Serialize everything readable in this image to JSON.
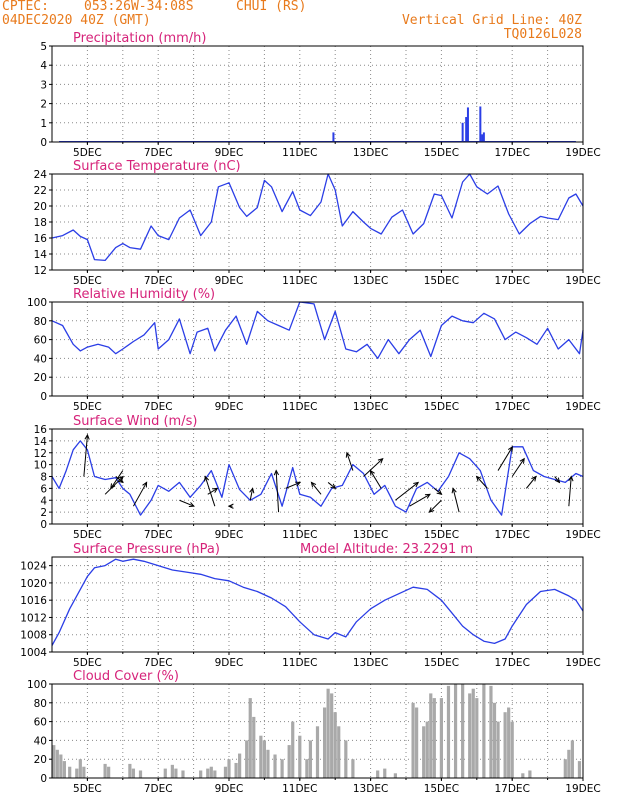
{
  "header": {
    "source": "CPTEC:",
    "location": "053:26W-34:08S",
    "station": "CHUI (RS)",
    "date": "04DEC2020 40Z (GMT)",
    "grid_note": "Vertical Grid Line: 40Z",
    "model_code": "TQ0126L028"
  },
  "colors": {
    "header_text": "#e87a1c",
    "panel_title": "#d6237a",
    "series": "#2b3ee6",
    "cloud": "#a9a9a9",
    "wind_arrow": "#000000",
    "grid": "#8a8a8a"
  },
  "x_ticks": [
    "5DEC",
    "7DEC",
    "9DEC",
    "11DEC",
    "13DEC",
    "15DEC",
    "17DEC",
    "19DEC"
  ],
  "chart_data": [
    {
      "id": "precip",
      "type": "bar",
      "title": "Precipitation (mm/h)",
      "ylim": [
        0,
        5
      ],
      "yticks": [
        0,
        1,
        2,
        3,
        4,
        5
      ],
      "x_days": [
        11.95,
        15.6,
        15.7,
        15.75,
        16.1,
        16.15,
        16.2
      ],
      "values": [
        0.5,
        1.0,
        1.3,
        1.8,
        1.85,
        0.4,
        0.5
      ]
    },
    {
      "id": "temp",
      "type": "line",
      "title": "Surface Temperature (nC)",
      "ylim": [
        12,
        24
      ],
      "yticks": [
        12,
        14,
        16,
        18,
        20,
        22,
        24
      ],
      "x_days": [
        4,
        4.3,
        4.6,
        4.8,
        5.0,
        5.2,
        5.5,
        5.8,
        6.0,
        6.2,
        6.5,
        6.8,
        7.0,
        7.3,
        7.6,
        7.9,
        8.2,
        8.5,
        8.7,
        9.0,
        9.3,
        9.5,
        9.8,
        10.0,
        10.2,
        10.5,
        10.8,
        11.0,
        11.3,
        11.6,
        11.8,
        12.0,
        12.2,
        12.5,
        12.8,
        13.0,
        13.3,
        13.6,
        13.9,
        14.2,
        14.5,
        14.8,
        15.0,
        15.3,
        15.6,
        15.8,
        16.0,
        16.3,
        16.6,
        16.9,
        17.2,
        17.5,
        17.8,
        18.0,
        18.3,
        18.6,
        18.8,
        19.0
      ],
      "values": [
        16,
        16.3,
        17,
        16.2,
        15.8,
        13.3,
        13.2,
        14.8,
        15.3,
        14.8,
        14.6,
        17.5,
        16.3,
        15.8,
        18.5,
        19.5,
        16.3,
        18,
        22.4,
        22.9,
        19.8,
        18.7,
        19.8,
        23.2,
        22.4,
        19.3,
        21.8,
        19.5,
        18.8,
        20.5,
        24,
        22,
        17.5,
        19.3,
        18,
        17.2,
        16.5,
        18.6,
        19.5,
        16.5,
        17.8,
        21.5,
        21.3,
        18.5,
        23,
        24,
        22.4,
        21.5,
        22.5,
        19,
        16.5,
        17.8,
        18.7,
        18.5,
        18.3,
        21,
        21.5,
        20
      ]
    },
    {
      "id": "rh",
      "type": "line",
      "title": "Relative Humidity (%)",
      "ylim": [
        0,
        100
      ],
      "yticks": [
        0,
        20,
        40,
        60,
        80,
        100
      ],
      "x_days": [
        4,
        4.3,
        4.6,
        4.8,
        5.0,
        5.3,
        5.6,
        5.8,
        6.0,
        6.3,
        6.6,
        6.9,
        7.0,
        7.3,
        7.6,
        7.9,
        8.1,
        8.4,
        8.6,
        8.9,
        9.2,
        9.5,
        9.8,
        10.1,
        10.4,
        10.7,
        11.0,
        11.4,
        11.7,
        12.0,
        12.3,
        12.6,
        12.9,
        13.2,
        13.5,
        13.8,
        14.1,
        14.4,
        14.7,
        15.0,
        15.3,
        15.6,
        15.9,
        16.2,
        16.5,
        16.8,
        17.1,
        17.4,
        17.7,
        18.0,
        18.3,
        18.6,
        18.9,
        19.0
      ],
      "values": [
        80,
        75,
        55,
        48,
        52,
        55,
        52,
        45,
        50,
        58,
        65,
        78,
        50,
        60,
        82,
        45,
        68,
        72,
        48,
        70,
        85,
        55,
        90,
        80,
        75,
        70,
        100,
        98,
        60,
        90,
        50,
        47,
        55,
        40,
        60,
        45,
        60,
        70,
        42,
        75,
        85,
        80,
        78,
        88,
        82,
        60,
        68,
        62,
        55,
        72,
        50,
        60,
        45,
        70
      ]
    },
    {
      "id": "wind",
      "type": "line",
      "title": "Surface Wind (m/s)",
      "ylim": [
        0,
        16
      ],
      "yticks": [
        0,
        2,
        4,
        6,
        8,
        10,
        12,
        14,
        16
      ],
      "x_days": [
        4,
        4.2,
        4.4,
        4.6,
        4.8,
        5.0,
        5.2,
        5.5,
        5.8,
        6.0,
        6.2,
        6.5,
        6.8,
        7.0,
        7.3,
        7.6,
        7.9,
        8.2,
        8.5,
        8.8,
        9.0,
        9.3,
        9.6,
        9.9,
        10.2,
        10.5,
        10.8,
        11.0,
        11.3,
        11.6,
        11.9,
        12.2,
        12.5,
        12.8,
        13.1,
        13.4,
        13.7,
        14.0,
        14.3,
        14.6,
        14.9,
        15.2,
        15.5,
        15.8,
        16.1,
        16.4,
        16.7,
        17.0,
        17.3,
        17.6,
        17.9,
        18.2,
        18.5,
        18.8,
        19.0
      ],
      "values": [
        8,
        6,
        9,
        12.5,
        14,
        12.5,
        8,
        7.5,
        7.8,
        6,
        5,
        1.5,
        4,
        6.5,
        5.5,
        7,
        4.5,
        6.5,
        9,
        4.5,
        10,
        5.8,
        4,
        5,
        8.5,
        3,
        9.5,
        5,
        4.5,
        3,
        6,
        6.5,
        10,
        8.5,
        5,
        6.5,
        3,
        2,
        6,
        7,
        5.5,
        8,
        12,
        11,
        9,
        4,
        1.5,
        13,
        13,
        9,
        8,
        7.5,
        7,
        8.5,
        8
      ],
      "arrows": [
        [
          4.9,
          8,
          15
        ],
        [
          5.5,
          5,
          8
        ],
        [
          5.8,
          8,
          7
        ],
        [
          6.0,
          9,
          6
        ],
        [
          6.3,
          3,
          7
        ],
        [
          7.6,
          4,
          3
        ],
        [
          8.4,
          5,
          6
        ],
        [
          8.6,
          3,
          8
        ],
        [
          9.1,
          3,
          3
        ],
        [
          9.6,
          4,
          6
        ],
        [
          10.4,
          2,
          9
        ],
        [
          10.6,
          6,
          7
        ],
        [
          11.6,
          5,
          7
        ],
        [
          11.8,
          7,
          6
        ],
        [
          12.5,
          9,
          12
        ],
        [
          12.8,
          8,
          11
        ],
        [
          13.3,
          6,
          9
        ],
        [
          13.7,
          4,
          7
        ],
        [
          14.1,
          3,
          5
        ],
        [
          14.8,
          6,
          5
        ],
        [
          15.0,
          4,
          2
        ],
        [
          15.5,
          2,
          6
        ],
        [
          16.3,
          6,
          8
        ],
        [
          16.6,
          9,
          13
        ],
        [
          17.0,
          8,
          11
        ],
        [
          17.4,
          6,
          8
        ],
        [
          18.2,
          8,
          7
        ],
        [
          18.6,
          3,
          8
        ]
      ]
    },
    {
      "id": "pressure",
      "type": "line",
      "title": "Surface Pressure (hPa)",
      "annotation": "Model Altitude: 23.2291 m",
      "ylim": [
        1004,
        1026
      ],
      "yticks": [
        1004,
        1008,
        1012,
        1016,
        1020,
        1024
      ],
      "x_days": [
        4,
        4.2,
        4.5,
        4.8,
        5.0,
        5.2,
        5.5,
        5.8,
        6.0,
        6.3,
        6.6,
        7.0,
        7.4,
        7.8,
        8.2,
        8.6,
        9.0,
        9.4,
        9.8,
        10.2,
        10.6,
        11.0,
        11.4,
        11.8,
        12.0,
        12.3,
        12.6,
        13.0,
        13.4,
        13.8,
        14.2,
        14.6,
        15.0,
        15.3,
        15.6,
        15.9,
        16.2,
        16.5,
        16.8,
        17.0,
        17.4,
        17.8,
        18.2,
        18.6,
        18.8,
        19.0
      ],
      "values": [
        1005.5,
        1008.5,
        1014,
        1018.5,
        1021.5,
        1023.5,
        1024,
        1025.5,
        1025,
        1025.5,
        1025,
        1024,
        1023,
        1022.5,
        1022,
        1021,
        1020.5,
        1019,
        1018,
        1016.5,
        1014.5,
        1011,
        1008,
        1007,
        1008.5,
        1007.5,
        1011,
        1014,
        1016,
        1017.5,
        1019,
        1018.5,
        1016,
        1013,
        1010,
        1008,
        1006.5,
        1006,
        1007,
        1010,
        1015,
        1018,
        1018.5,
        1017,
        1016,
        1013.5
      ]
    },
    {
      "id": "cloud",
      "type": "bar",
      "title": "Cloud Cover (%)",
      "ylim": [
        0,
        100
      ],
      "yticks": [
        0,
        20,
        40,
        60,
        80,
        100
      ],
      "x_days": [
        4.05,
        4.15,
        4.25,
        4.35,
        4.5,
        4.7,
        4.8,
        4.9,
        5.5,
        5.6,
        6.2,
        6.3,
        6.5,
        7.2,
        7.4,
        7.5,
        7.7,
        8.2,
        8.4,
        8.5,
        8.6,
        8.9,
        9.0,
        9.2,
        9.3,
        9.5,
        9.6,
        9.7,
        9.9,
        10.0,
        10.1,
        10.3,
        10.5,
        10.7,
        10.8,
        11.0,
        11.2,
        11.3,
        11.5,
        11.7,
        11.8,
        11.9,
        12.0,
        12.1,
        12.3,
        12.5,
        13.2,
        13.4,
        13.7,
        14.2,
        14.3,
        14.5,
        14.6,
        14.7,
        14.8,
        15.0,
        15.2,
        15.4,
        15.6,
        15.8,
        15.9,
        16.0,
        16.2,
        16.4,
        16.5,
        16.6,
        16.8,
        16.9,
        17.0,
        17.3,
        17.5,
        18.5,
        18.6,
        18.7,
        18.9
      ],
      "values": [
        35,
        30,
        25,
        18,
        12,
        10,
        20,
        12,
        15,
        12,
        15,
        10,
        8,
        10,
        14,
        10,
        8,
        8,
        10,
        12,
        8,
        12,
        20,
        16,
        26,
        40,
        85,
        65,
        45,
        40,
        30,
        25,
        20,
        35,
        60,
        45,
        20,
        40,
        55,
        75,
        95,
        90,
        70,
        55,
        40,
        20,
        8,
        10,
        5,
        80,
        75,
        55,
        60,
        90,
        85,
        85,
        98,
        100,
        100,
        90,
        95,
        85,
        100,
        98,
        80,
        60,
        70,
        75,
        60,
        5,
        8,
        20,
        30,
        40,
        18
      ]
    }
  ]
}
